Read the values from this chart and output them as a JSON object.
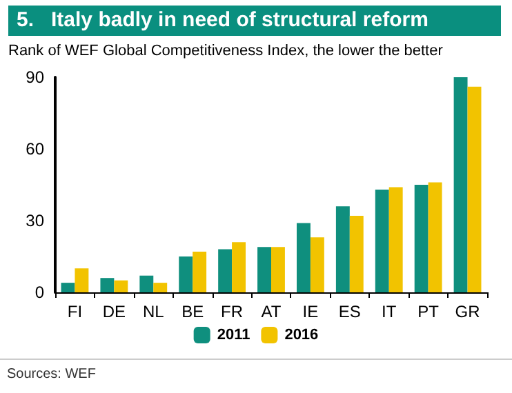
{
  "chart_data": {
    "type": "bar",
    "title": "5.   Italy badly in need of structural reform",
    "subtitle": "Rank of WEF Global Competitiveness Index, the lower the better",
    "categories": [
      "FI",
      "DE",
      "NL",
      "BE",
      "FR",
      "AT",
      "IE",
      "ES",
      "IT",
      "PT",
      "GR"
    ],
    "series": [
      {
        "name": "2011",
        "color": "#0f8f7e",
        "values": [
          4,
          6,
          7,
          15,
          18,
          19,
          29,
          36,
          43,
          45,
          90
        ]
      },
      {
        "name": "2016",
        "color": "#f2c300",
        "values": [
          10,
          5,
          4,
          17,
          21,
          19,
          23,
          32,
          44,
          46,
          86
        ]
      }
    ],
    "ylim": [
      0,
      90
    ],
    "yticks": [
      0,
      30,
      60,
      90
    ],
    "grid": false,
    "legend": "bottom",
    "annotations": [
      "Sources: WEF"
    ]
  }
}
